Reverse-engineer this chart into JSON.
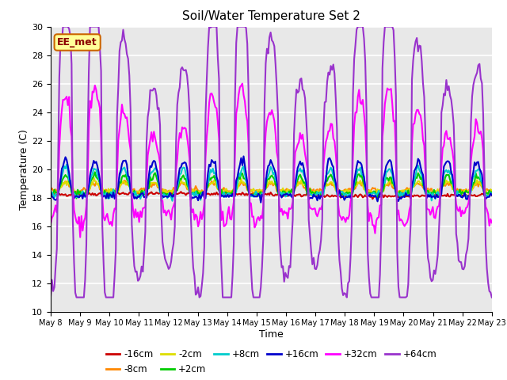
{
  "title": "Soil/Water Temperature Set 2",
  "xlabel": "Time",
  "ylabel": "Temperature (C)",
  "ylim": [
    10,
    30
  ],
  "annotation_text": "EE_met",
  "annotation_color": "#8b0000",
  "annotation_bg": "#ffff99",
  "annotation_border": "#cc6600",
  "bg_color": "#e8e8e8",
  "grid_color": "white",
  "series": {
    "-16cm": {
      "color": "#cc0000",
      "lw": 1.5
    },
    "-8cm": {
      "color": "#ff8800",
      "lw": 1.5
    },
    "-2cm": {
      "color": "#dddd00",
      "lw": 1.5
    },
    "+2cm": {
      "color": "#00cc00",
      "lw": 1.5
    },
    "+8cm": {
      "color": "#00cccc",
      "lw": 1.5
    },
    "+16cm": {
      "color": "#0000cc",
      "lw": 1.5
    },
    "+32cm": {
      "color": "#ff00ff",
      "lw": 1.5
    },
    "+64cm": {
      "color": "#9933cc",
      "lw": 1.5
    }
  },
  "xtick_labels": [
    "May 8",
    "May 9",
    "May 10",
    "May 11",
    "May 12",
    "May 13",
    "May 14",
    "May 15",
    "May 16",
    "May 17",
    "May 18",
    "May 19",
    "May 20",
    "May 21",
    "May 22",
    "May 23"
  ],
  "ytick_labels": [
    10,
    12,
    14,
    16,
    18,
    20,
    22,
    24,
    26,
    28,
    30
  ]
}
